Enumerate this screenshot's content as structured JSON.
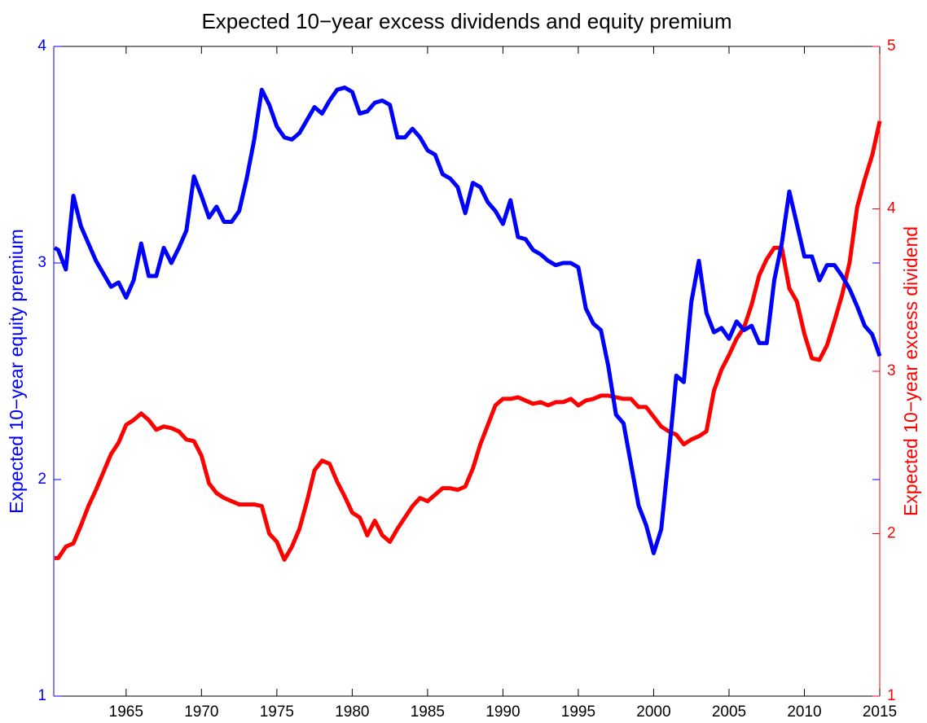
{
  "chart_data": {
    "type": "line",
    "title": "Expected 10−year excess dividends and equity premium",
    "ylabel": "Expected 10−year equity premium",
    "y2label": "Expected 10−year excess dividend",
    "x": [
      1960.25,
      1960.5,
      1961,
      1961.5,
      1962,
      1962.5,
      1963,
      1963.5,
      1964,
      1964.5,
      1965,
      1965.5,
      1966,
      1966.5,
      1967,
      1967.5,
      1968,
      1968.5,
      1969,
      1969.5,
      1970,
      1970.5,
      1971,
      1971.5,
      1972,
      1972.5,
      1973,
      1973.5,
      1974,
      1974.5,
      1975,
      1975.5,
      1976,
      1976.5,
      1977,
      1977.5,
      1978,
      1978.5,
      1979,
      1979.5,
      1980,
      1980.5,
      1981,
      1981.5,
      1982,
      1982.5,
      1983,
      1983.5,
      1984,
      1984.5,
      1985,
      1985.5,
      1986,
      1986.5,
      1987,
      1987.5,
      1988,
      1988.5,
      1989,
      1989.5,
      1990,
      1990.5,
      1991,
      1991.5,
      1992,
      1992.5,
      1993,
      1993.5,
      1994,
      1994.5,
      1995,
      1995.5,
      1996,
      1996.5,
      1997,
      1997.5,
      1998,
      1998.5,
      1999,
      1999.5,
      2000,
      2000.5,
      2001,
      2001.5,
      2002,
      2002.5,
      2003,
      2003.5,
      2004,
      2004.5,
      2005,
      2005.5,
      2006,
      2006.5,
      2007,
      2007.5,
      2008,
      2008.5,
      2009,
      2009.5,
      2010,
      2010.5,
      2011,
      2011.5,
      2012,
      2012.5,
      2013,
      2013.5,
      2014,
      2014.5,
      2015
    ],
    "series": [
      {
        "color": "#0000ff",
        "values": [
          3.07,
          3.06,
          2.97,
          3.31,
          3.17,
          3.09,
          3.01,
          2.95,
          2.89,
          2.91,
          2.84,
          2.92,
          3.09,
          2.94,
          2.94,
          3.07,
          3.0,
          3.07,
          3.15,
          3.4,
          3.31,
          3.21,
          3.26,
          3.19,
          3.19,
          3.24,
          3.39,
          3.57,
          3.8,
          3.73,
          3.63,
          3.58,
          3.57,
          3.6,
          3.66,
          3.72,
          3.69,
          3.75,
          3.8,
          3.81,
          3.79,
          3.69,
          3.7,
          3.74,
          3.75,
          3.73,
          3.58,
          3.58,
          3.62,
          3.58,
          3.52,
          3.5,
          3.41,
          3.39,
          3.35,
          3.23,
          3.37,
          3.35,
          3.28,
          3.24,
          3.18,
          3.29,
          3.12,
          3.11,
          3.06,
          3.04,
          3.01,
          2.99,
          3.0,
          3.0,
          2.98,
          2.79,
          2.72,
          2.69,
          2.52,
          2.3,
          2.26,
          2.07,
          1.88,
          1.79,
          1.66,
          1.77,
          2.11,
          2.48,
          2.45,
          2.82,
          3.01,
          2.77,
          2.68,
          2.7,
          2.65,
          2.73,
          2.69,
          2.71,
          2.63,
          2.63,
          2.92,
          3.09,
          3.33,
          3.18,
          3.03,
          3.03,
          2.92,
          2.99,
          2.99,
          2.94,
          2.88,
          2.8,
          2.71,
          2.67,
          2.57
        ]
      },
      {
        "color": "#ff0000",
        "axis": "y2",
        "values": [
          1.85,
          1.85,
          1.92,
          1.94,
          2.05,
          2.17,
          2.27,
          2.38,
          2.49,
          2.56,
          2.67,
          2.7,
          2.74,
          2.7,
          2.64,
          2.66,
          2.65,
          2.63,
          2.58,
          2.57,
          2.48,
          2.31,
          2.25,
          2.22,
          2.2,
          2.18,
          2.18,
          2.18,
          2.17,
          2.0,
          1.95,
          1.84,
          1.92,
          2.03,
          2.2,
          2.39,
          2.45,
          2.43,
          2.32,
          2.23,
          2.13,
          2.1,
          1.99,
          2.08,
          1.99,
          1.95,
          2.03,
          2.1,
          2.17,
          2.22,
          2.2,
          2.24,
          2.28,
          2.28,
          2.27,
          2.29,
          2.4,
          2.55,
          2.67,
          2.79,
          2.83,
          2.83,
          2.84,
          2.82,
          2.8,
          2.81,
          2.79,
          2.81,
          2.81,
          2.83,
          2.79,
          2.82,
          2.83,
          2.85,
          2.85,
          2.84,
          2.83,
          2.83,
          2.78,
          2.78,
          2.72,
          2.66,
          2.63,
          2.61,
          2.55,
          2.58,
          2.6,
          2.63,
          2.88,
          3.01,
          3.1,
          3.2,
          3.27,
          3.41,
          3.59,
          3.69,
          3.76,
          3.76,
          3.51,
          3.43,
          3.23,
          3.08,
          3.07,
          3.16,
          3.31,
          3.47,
          3.67,
          4.01,
          4.18,
          4.33,
          4.54
        ]
      }
    ],
    "xlim": [
      1960.2,
      2015
    ],
    "xticks": [
      1965,
      1970,
      1975,
      1980,
      1985,
      1990,
      1995,
      2000,
      2005,
      2010,
      2015
    ],
    "ylim": [
      1,
      4
    ],
    "yticks": [
      1,
      2,
      3,
      4
    ],
    "y2lim": [
      1,
      5
    ],
    "y2ticks": [
      1,
      2,
      3,
      4,
      5
    ]
  }
}
